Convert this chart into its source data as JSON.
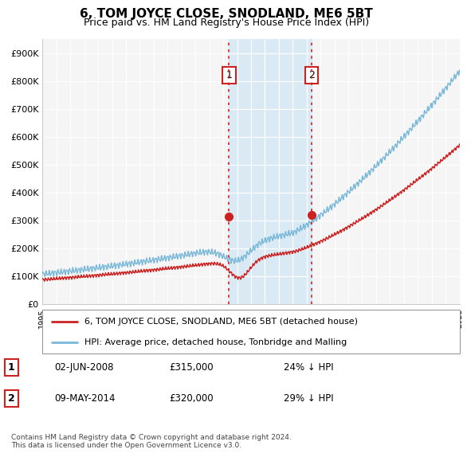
{
  "title": "6, TOM JOYCE CLOSE, SNODLAND, ME6 5BT",
  "subtitle": "Price paid vs. HM Land Registry's House Price Index (HPI)",
  "yticks": [
    0,
    100000,
    200000,
    300000,
    400000,
    500000,
    600000,
    700000,
    800000,
    900000
  ],
  "ytick_labels": [
    "£0",
    "£100K",
    "£200K",
    "£300K",
    "£400K",
    "£500K",
    "£600K",
    "£700K",
    "£800K",
    "£900K"
  ],
  "x_start_year": 1995,
  "x_end_year": 2025,
  "hpi_color": "#7ab8d9",
  "price_color": "#cc2222",
  "sale1_date": 2008.42,
  "sale1_price": 315000,
  "sale1_label": "1",
  "sale2_date": 2014.35,
  "sale2_price": 320000,
  "sale2_label": "2",
  "shade_color": "#daeaf5",
  "vline_color": "#cc2222",
  "legend_line1": "6, TOM JOYCE CLOSE, SNODLAND, ME6 5BT (detached house)",
  "legend_line2": "HPI: Average price, detached house, Tonbridge and Malling",
  "table_row1": [
    "1",
    "02-JUN-2008",
    "£315,000",
    "24% ↓ HPI"
  ],
  "table_row2": [
    "2",
    "09-MAY-2014",
    "£320,000",
    "29% ↓ HPI"
  ],
  "footnote": "Contains HM Land Registry data © Crown copyright and database right 2024.\nThis data is licensed under the Open Government Licence v3.0.",
  "background_color": "#ffffff",
  "plot_bg_color": "#f5f5f5"
}
